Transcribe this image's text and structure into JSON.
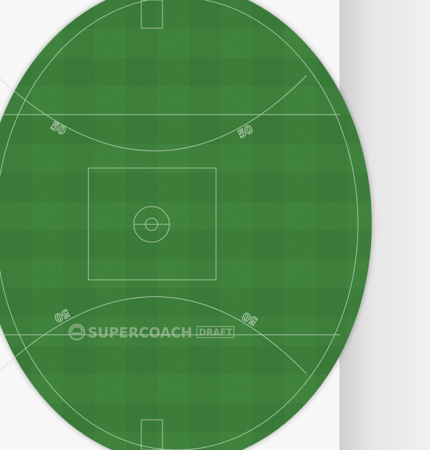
{
  "field": {
    "arc_label_top_left": "50",
    "arc_label_top_right": "50",
    "arc_label_bottom_left": "50",
    "arc_label_bottom_right": "50"
  },
  "watermark": {
    "brand": "SUPERCOACH",
    "product": "DRAFT"
  },
  "colors": {
    "grass": "#3a7d37",
    "grass_dark": "#2f6a2d",
    "lines": "#c9dcc6"
  }
}
